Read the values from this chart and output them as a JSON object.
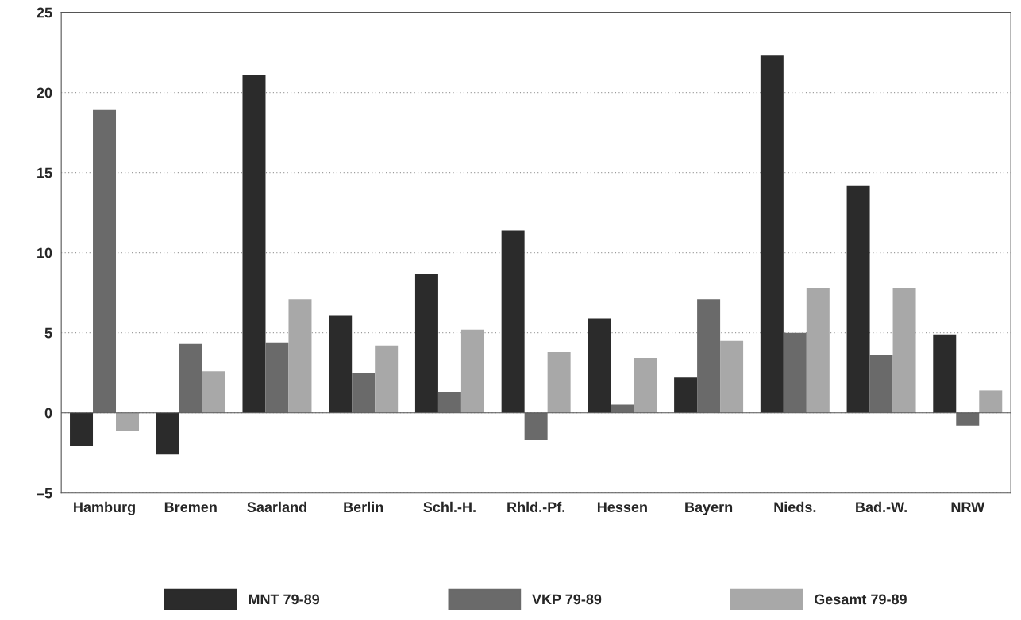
{
  "chart_data": {
    "type": "bar",
    "categories": [
      "Hamburg",
      "Bremen",
      "Saarland",
      "Berlin",
      "Schl.-H.",
      "Rhld.-Pf.",
      "Hessen",
      "Bayern",
      "Nieds.",
      "Bad.-W.",
      "NRW"
    ],
    "series": [
      {
        "name": "MNT 79-89",
        "color": "#2b2b2b",
        "values": [
          -2.1,
          -2.6,
          21.1,
          6.1,
          8.7,
          11.4,
          5.9,
          2.2,
          22.3,
          14.2,
          4.9
        ]
      },
      {
        "name": "VKP 79-89",
        "color": "#6a6a6a",
        "values": [
          18.9,
          4.3,
          4.4,
          2.5,
          1.3,
          -1.7,
          0.5,
          7.1,
          5.0,
          3.6,
          -0.8
        ]
      },
      {
        "name": "Gesamt 79-89",
        "color": "#a8a8a8",
        "values": [
          -1.1,
          2.6,
          7.1,
          4.2,
          5.2,
          3.8,
          3.4,
          4.5,
          7.8,
          7.8,
          1.4
        ]
      }
    ],
    "ylim": [
      -5,
      25
    ],
    "yticks": [
      {
        "value": -5,
        "label": "–5"
      },
      0,
      5,
      10,
      15,
      20,
      25
    ],
    "grid": "y",
    "legend": "bottom"
  }
}
